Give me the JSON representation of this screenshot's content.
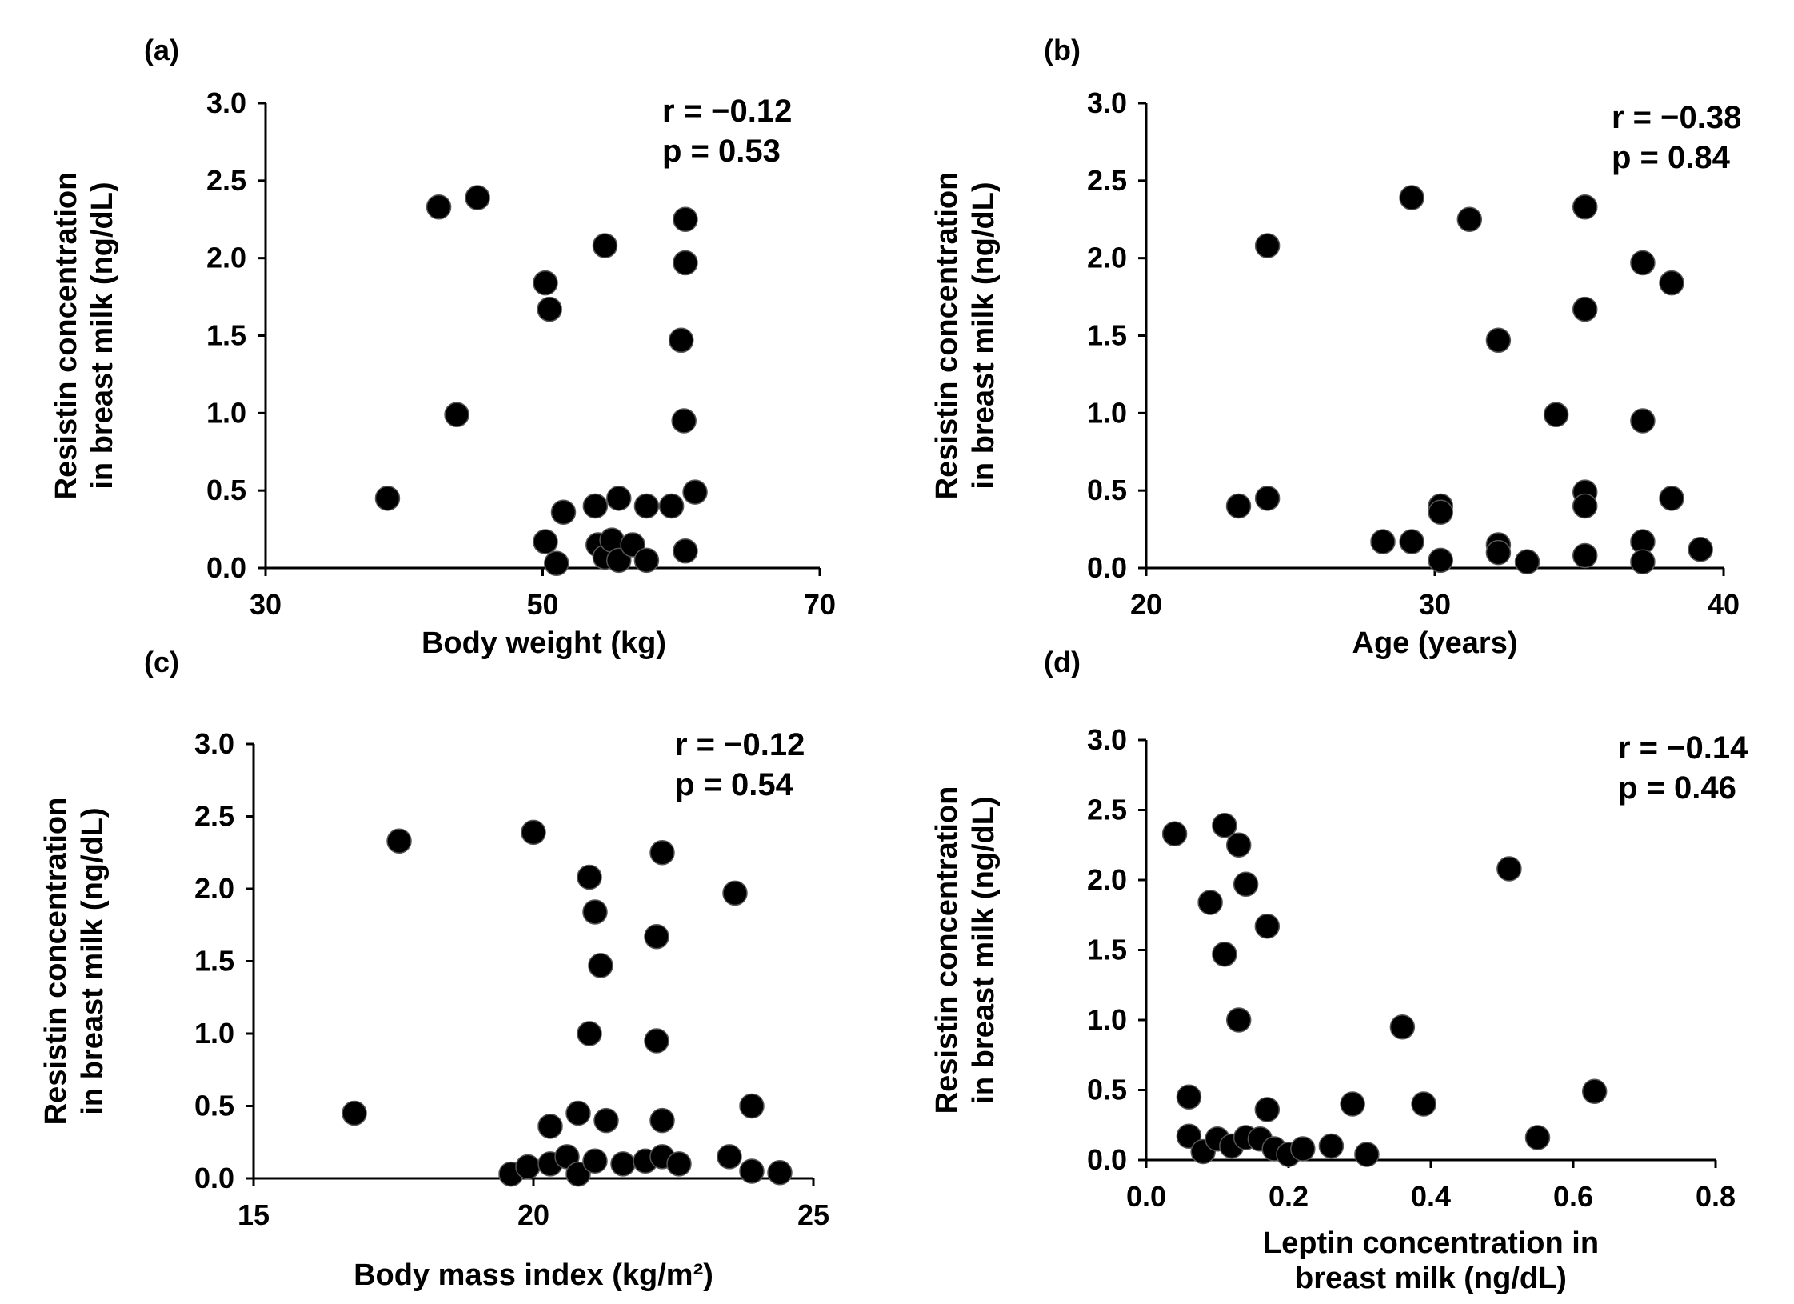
{
  "colors": {
    "points": "#000000",
    "axes": "#000000",
    "background": "#ffffff"
  },
  "chart_data": [
    {
      "type": "scatter",
      "panel_label": "(a)",
      "xlabel": [
        "Body weight (kg)"
      ],
      "ylabel": [
        "Resistin concentration",
        "in breast milk (ng/dL)"
      ],
      "xlim": [
        30,
        70
      ],
      "ylim": [
        0,
        3
      ],
      "xticks": [
        30,
        50,
        70
      ],
      "xtick_labels": [
        "30",
        "50",
        "70"
      ],
      "yticks": [
        0,
        0.5,
        1,
        1.5,
        2,
        2.5,
        3
      ],
      "ytick_labels": [
        "0.0",
        "0.5",
        "1.0",
        "1.5",
        "2.0",
        "2.5",
        "3.0"
      ],
      "stats": [
        "r = −0.12",
        "p = 0.53"
      ],
      "points": [
        [
          42.5,
          2.33
        ],
        [
          45.3,
          2.39
        ],
        [
          60.3,
          2.25
        ],
        [
          54.5,
          2.08
        ],
        [
          60.3,
          1.97
        ],
        [
          50.2,
          1.84
        ],
        [
          50.5,
          1.67
        ],
        [
          60.0,
          1.47
        ],
        [
          43.8,
          0.99
        ],
        [
          60.2,
          0.95
        ],
        [
          38.8,
          0.45
        ],
        [
          61.0,
          0.49
        ],
        [
          51.5,
          0.36
        ],
        [
          53.8,
          0.4
        ],
        [
          55.5,
          0.45
        ],
        [
          57.5,
          0.4
        ],
        [
          59.3,
          0.4
        ],
        [
          50.2,
          0.17
        ],
        [
          51.0,
          0.03
        ],
        [
          54.0,
          0.15
        ],
        [
          54.5,
          0.07
        ],
        [
          55.0,
          0.18
        ],
        [
          55.5,
          0.05
        ],
        [
          56.5,
          0.15
        ],
        [
          57.5,
          0.05
        ],
        [
          60.3,
          0.11
        ]
      ]
    },
    {
      "type": "scatter",
      "panel_label": "(b)",
      "xlabel": [
        "Age (years)"
      ],
      "ylabel": [
        "Resistin concentration",
        "in breast milk (ng/dL)"
      ],
      "xlim": [
        20,
        40
      ],
      "ylim": [
        0,
        3
      ],
      "xticks": [
        20,
        30,
        40
      ],
      "xtick_labels": [
        "20",
        "30",
        "40"
      ],
      "yticks": [
        0,
        0.5,
        1,
        1.5,
        2,
        2.5,
        3
      ],
      "ytick_labels": [
        "0.0",
        "0.5",
        "1.0",
        "1.5",
        "2.0",
        "2.5",
        "3.0"
      ],
      "stats": [
        "r = −0.38",
        "p = 0.84"
      ],
      "points": [
        [
          29.2,
          2.39
        ],
        [
          31.2,
          2.25
        ],
        [
          35.2,
          2.33
        ],
        [
          24.2,
          2.08
        ],
        [
          37.2,
          1.97
        ],
        [
          38.2,
          1.84
        ],
        [
          35.2,
          1.67
        ],
        [
          32.2,
          1.47
        ],
        [
          34.2,
          0.99
        ],
        [
          37.2,
          0.95
        ],
        [
          23.2,
          0.4
        ],
        [
          24.2,
          0.45
        ],
        [
          30.2,
          0.4
        ],
        [
          30.2,
          0.36
        ],
        [
          35.2,
          0.49
        ],
        [
          35.2,
          0.4
        ],
        [
          38.2,
          0.45
        ],
        [
          28.2,
          0.17
        ],
        [
          29.2,
          0.17
        ],
        [
          30.2,
          0.05
        ],
        [
          32.2,
          0.15
        ],
        [
          32.2,
          0.1
        ],
        [
          33.2,
          0.04
        ],
        [
          35.2,
          0.08
        ],
        [
          37.2,
          0.17
        ],
        [
          37.2,
          0.04
        ],
        [
          39.2,
          0.12
        ]
      ]
    },
    {
      "type": "scatter",
      "panel_label": "(c)",
      "xlabel": [
        "Body mass index (kg/m²)"
      ],
      "ylabel": [
        "Resistin concentration",
        "in breast milk (ng/dL)"
      ],
      "xlim": [
        15,
        25
      ],
      "ylim": [
        0,
        3
      ],
      "xticks": [
        15,
        20,
        25
      ],
      "xtick_labels": [
        "15",
        "20",
        "25"
      ],
      "yticks": [
        0,
        0.5,
        1,
        1.5,
        2,
        2.5,
        3
      ],
      "ytick_labels": [
        "0.0",
        "0.5",
        "1.0",
        "1.5",
        "2.0",
        "2.5",
        "3.0"
      ],
      "stats": [
        "r = −0.12",
        "p = 0.54"
      ],
      "points": [
        [
          17.6,
          2.33
        ],
        [
          20.0,
          2.39
        ],
        [
          22.3,
          2.25
        ],
        [
          21.0,
          2.08
        ],
        [
          23.6,
          1.97
        ],
        [
          21.1,
          1.84
        ],
        [
          22.2,
          1.67
        ],
        [
          21.2,
          1.47
        ],
        [
          21.0,
          1.0
        ],
        [
          22.2,
          0.95
        ],
        [
          16.8,
          0.45
        ],
        [
          23.9,
          0.5
        ],
        [
          20.3,
          0.36
        ],
        [
          20.8,
          0.45
        ],
        [
          21.3,
          0.4
        ],
        [
          22.3,
          0.4
        ],
        [
          19.6,
          0.03
        ],
        [
          19.9,
          0.08
        ],
        [
          20.3,
          0.1
        ],
        [
          20.6,
          0.15
        ],
        [
          20.8,
          0.03
        ],
        [
          21.1,
          0.12
        ],
        [
          21.6,
          0.1
        ],
        [
          22.0,
          0.12
        ],
        [
          22.3,
          0.15
        ],
        [
          22.6,
          0.1
        ],
        [
          23.5,
          0.15
        ],
        [
          23.9,
          0.05
        ],
        [
          24.4,
          0.04
        ]
      ]
    },
    {
      "type": "scatter",
      "panel_label": "(d)",
      "xlabel": [
        "Leptin concentration in",
        "breast milk (ng/dL)"
      ],
      "ylabel": [
        "Resistin  concentration",
        "in breast milk (ng/dL)"
      ],
      "xlim": [
        0,
        0.8
      ],
      "ylim": [
        0,
        3
      ],
      "xticks": [
        0,
        0.2,
        0.4,
        0.6,
        0.8
      ],
      "xtick_labels": [
        "0.0",
        "0.2",
        "0.4",
        "0.6",
        "0.8"
      ],
      "yticks": [
        0,
        0.5,
        1,
        1.5,
        2,
        2.5,
        3
      ],
      "ytick_labels": [
        "0.0",
        "0.5",
        "1.0",
        "1.5",
        "2.0",
        "2.5",
        "3.0"
      ],
      "stats": [
        "r = −0.14",
        "p = 0.46"
      ],
      "points": [
        [
          0.04,
          2.33
        ],
        [
          0.11,
          2.39
        ],
        [
          0.13,
          2.25
        ],
        [
          0.14,
          1.97
        ],
        [
          0.09,
          1.84
        ],
        [
          0.17,
          1.67
        ],
        [
          0.11,
          1.47
        ],
        [
          0.13,
          1.0
        ],
        [
          0.51,
          2.08
        ],
        [
          0.36,
          0.95
        ],
        [
          0.06,
          0.45
        ],
        [
          0.17,
          0.36
        ],
        [
          0.29,
          0.4
        ],
        [
          0.39,
          0.4
        ],
        [
          0.63,
          0.49
        ],
        [
          0.55,
          0.16
        ],
        [
          0.06,
          0.17
        ],
        [
          0.08,
          0.06
        ],
        [
          0.1,
          0.15
        ],
        [
          0.12,
          0.1
        ],
        [
          0.14,
          0.16
        ],
        [
          0.16,
          0.15
        ],
        [
          0.18,
          0.08
        ],
        [
          0.2,
          0.04
        ],
        [
          0.22,
          0.08
        ],
        [
          0.26,
          0.1
        ],
        [
          0.31,
          0.04
        ]
      ]
    }
  ]
}
